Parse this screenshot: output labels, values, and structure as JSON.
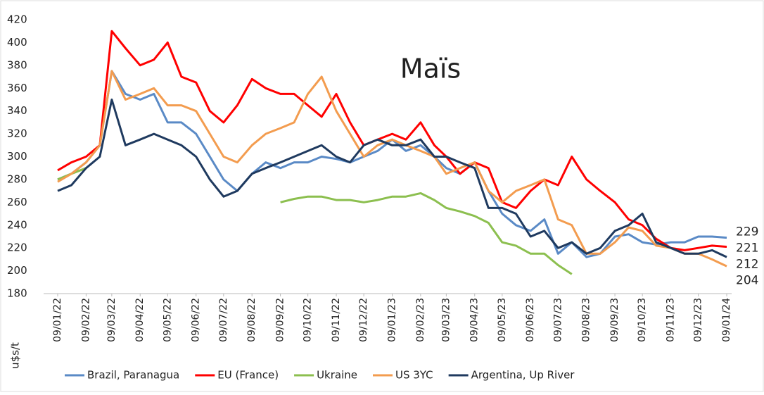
{
  "chart_data": {
    "type": "line",
    "title": "Maïs",
    "y_label": "u$s/t",
    "x": [
      "09/01/22",
      "24/01/22",
      "09/02/22",
      "24/02/22",
      "09/03/22",
      "24/03/22",
      "09/04/22",
      "24/04/22",
      "09/05/22",
      "24/05/22",
      "09/06/22",
      "24/06/22",
      "09/07/22",
      "24/07/22",
      "09/08/22",
      "24/08/22",
      "09/09/22",
      "24/09/22",
      "09/10/22",
      "24/10/22",
      "09/11/22",
      "24/11/22",
      "09/12/22",
      "24/12/22",
      "09/01/23",
      "24/01/23",
      "09/02/23",
      "24/02/23",
      "09/03/23",
      "24/03/23",
      "09/04/23",
      "24/04/23",
      "09/05/23",
      "24/05/23",
      "09/06/23",
      "24/06/23",
      "09/07/23",
      "24/07/23",
      "09/08/23",
      "24/08/23",
      "09/09/23",
      "24/09/23",
      "09/10/23",
      "24/10/23",
      "09/11/23",
      "24/11/23",
      "09/12/23",
      "24/12/23",
      "09/01/24"
    ],
    "xlim": [
      "09/01/22",
      "09/01/24"
    ],
    "xticks": [
      "09/01/22",
      "09/02/22",
      "09/03/22",
      "09/04/22",
      "09/05/22",
      "09/06/22",
      "09/07/22",
      "09/08/22",
      "09/09/22",
      "09/10/22",
      "09/11/22",
      "09/12/22",
      "09/01/23",
      "09/02/23",
      "09/03/23",
      "09/04/23",
      "09/05/23",
      "09/06/23",
      "09/07/23",
      "09/08/23",
      "09/09/23",
      "09/10/23",
      "09/11/23",
      "09/12/23",
      "09/01/24"
    ],
    "ylim": [
      180,
      420
    ],
    "yticks": [
      180,
      200,
      220,
      240,
      260,
      280,
      300,
      320,
      340,
      360,
      380,
      400,
      420
    ],
    "series": [
      {
        "name": "Brazil, Paranagua",
        "color": "#5a8ac6",
        "values": [
          280,
          285,
          295,
          310,
          375,
          355,
          350,
          355,
          330,
          330,
          320,
          300,
          280,
          270,
          285,
          295,
          290,
          295,
          295,
          300,
          298,
          295,
          300,
          305,
          315,
          305,
          310,
          300,
          290,
          285,
          295,
          270,
          250,
          240,
          235,
          245,
          215,
          225,
          212,
          215,
          230,
          232,
          225,
          223,
          225,
          225,
          230,
          230,
          229
        ]
      },
      {
        "name": "EU (France)",
        "color": "#ff0000",
        "values": [
          288,
          295,
          300,
          310,
          410,
          395,
          380,
          385,
          400,
          370,
          365,
          340,
          330,
          345,
          368,
          360,
          355,
          355,
          345,
          335,
          355,
          330,
          310,
          315,
          320,
          315,
          330,
          310,
          300,
          285,
          295,
          290,
          260,
          255,
          270,
          280,
          275,
          300,
          280,
          270,
          260,
          245,
          240,
          228,
          220,
          218,
          220,
          222,
          221
        ]
      },
      {
        "name": "Ukraine",
        "color": "#8cbf4f",
        "values": [
          280,
          285,
          290,
          null,
          null,
          null,
          null,
          null,
          null,
          null,
          null,
          null,
          null,
          null,
          null,
          null,
          260,
          263,
          265,
          265,
          262,
          262,
          260,
          262,
          265,
          265,
          268,
          262,
          255,
          252,
          248,
          242,
          225,
          222,
          215,
          215,
          205,
          197,
          null,
          null,
          null,
          null,
          null,
          null,
          null,
          null,
          null,
          null,
          null
        ]
      },
      {
        "name": "US 3YC",
        "color": "#f39c4f",
        "values": [
          278,
          285,
          295,
          310,
          375,
          350,
          355,
          360,
          345,
          345,
          340,
          320,
          300,
          295,
          310,
          320,
          325,
          330,
          355,
          370,
          340,
          320,
          300,
          310,
          315,
          310,
          305,
          300,
          285,
          290,
          295,
          270,
          260,
          270,
          275,
          280,
          245,
          240,
          215,
          215,
          225,
          238,
          235,
          222,
          220,
          215,
          215,
          210,
          204
        ]
      },
      {
        "name": "Argentina, Up River",
        "color": "#1f3a5f",
        "values": [
          270,
          275,
          290,
          300,
          350,
          310,
          315,
          320,
          315,
          310,
          300,
          280,
          265,
          270,
          285,
          290,
          295,
          300,
          305,
          310,
          300,
          295,
          310,
          315,
          310,
          310,
          315,
          300,
          300,
          295,
          290,
          255,
          255,
          250,
          230,
          235,
          220,
          225,
          215,
          220,
          235,
          240,
          250,
          225,
          220,
          215,
          215,
          218,
          212
        ]
      }
    ]
  }
}
